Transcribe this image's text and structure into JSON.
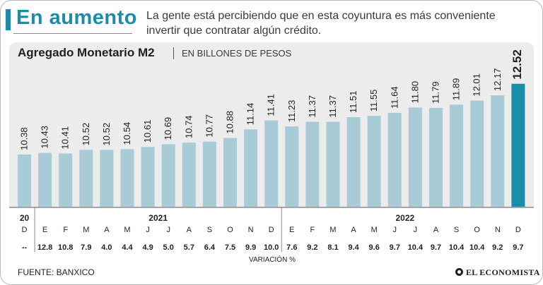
{
  "header": {
    "title": "En aumento",
    "description": "La gente está percibiendo que en esta coyuntura es más conveniente invertir que contratar algún crédito."
  },
  "footer": {
    "source": "FUENTE: BANXICO",
    "brand": "EL ECONOMISTA"
  },
  "colors": {
    "accent": "#1a8ea8",
    "bar": "#a9cbd6",
    "bar_highlight": "#1a8ea8"
  },
  "chart_data": {
    "type": "bar",
    "title": "Agregado Monetario M2",
    "unit_label": "EN BILLONES DE PESOS",
    "categories": [
      "D",
      "E",
      "F",
      "M",
      "A",
      "M",
      "J",
      "J",
      "A",
      "S",
      "O",
      "N",
      "D",
      "E",
      "F",
      "M",
      "A",
      "M",
      "J",
      "J",
      "A",
      "S",
      "O",
      "N",
      "D"
    ],
    "years": [
      {
        "label": "20",
        "start": 0,
        "end": 0
      },
      {
        "label": "2021",
        "start": 1,
        "end": 12
      },
      {
        "label": "2022",
        "start": 13,
        "end": 24
      }
    ],
    "values": [
      10.38,
      10.43,
      10.41,
      10.52,
      10.52,
      10.54,
      10.61,
      10.69,
      10.74,
      10.77,
      10.88,
      11.14,
      11.41,
      11.23,
      11.37,
      11.37,
      11.51,
      11.55,
      11.64,
      11.8,
      11.79,
      11.89,
      12.01,
      12.17,
      12.52
    ],
    "value_labels": [
      "10.38",
      "10.43",
      "10.41",
      "10.52",
      "10.52",
      "10.54",
      "10.61",
      "10.69",
      "10.74",
      "10.77",
      "10.88",
      "11.14",
      "11.41",
      "11.23",
      "11.37",
      "11.37",
      "11.51",
      "11.55",
      "11.64",
      "11.80",
      "11.79",
      "11.89",
      "12.01",
      "12.17",
      "12.52"
    ],
    "variation": [
      "--",
      "12.8",
      "10.8",
      "7.9",
      "4.0",
      "4.4",
      "4.9",
      "5.0",
      "5.7",
      "6.4",
      "7.5",
      "9.9",
      "10.0",
      "7.6",
      "9.2",
      "8.1",
      "9.4",
      "9.6",
      "9.7",
      "10.4",
      "9.7",
      "10.4",
      "10.4",
      "9.2",
      "9.7"
    ],
    "variation_label": "VARIACIÓN %",
    "highlight_index": 24,
    "ylim": [
      8.8,
      12.6
    ]
  }
}
